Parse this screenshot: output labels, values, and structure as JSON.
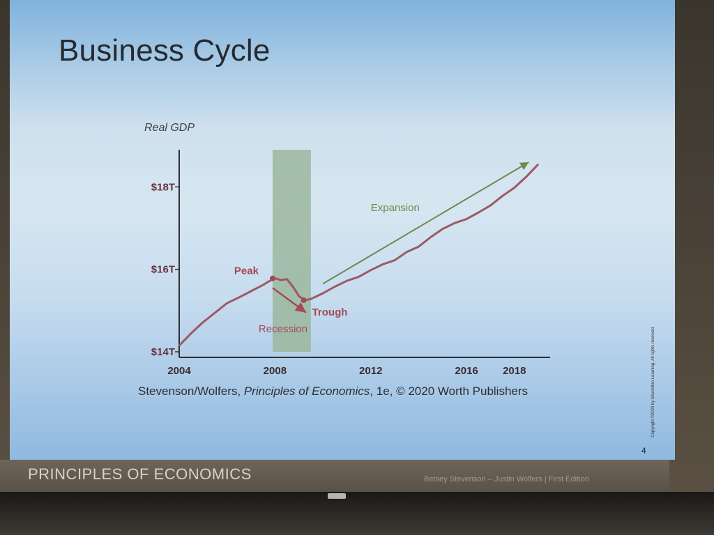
{
  "slide": {
    "title": "Business Cycle",
    "source_prefix": "Stevenson/Wolfers, ",
    "source_book": "Principles of Economics",
    "source_suffix": ", 1e, © 2020 Worth Publishers",
    "page_number": "4",
    "copyright": "Copyright ©2020 by Macmillan Learning. All rights reserved.",
    "footer_left": "PRINCIPLES OF ECONOMICS",
    "footer_right": "Betsey Stevenson – Justin Wolfers | First Edition"
  },
  "colors": {
    "gdp_line": "#9b5a63",
    "annotation": "#a34a58",
    "expansion": "#6e8a4a",
    "recession_band": "#9bb79e",
    "axis": "#2f2f33"
  },
  "chart_data": {
    "type": "line",
    "ylabel": "Real GDP",
    "ylim": [
      14,
      18.9
    ],
    "xlim": [
      2004,
      2019.2
    ],
    "y_ticks": [
      {
        "value": 14,
        "label": "$14T"
      },
      {
        "value": 16,
        "label": "$16T"
      },
      {
        "value": 18,
        "label": "$18T"
      }
    ],
    "x_ticks": [
      {
        "value": 2004,
        "label": "2004"
      },
      {
        "value": 2008,
        "label": "2008"
      },
      {
        "value": 2012,
        "label": "2012"
      },
      {
        "value": 2016,
        "label": "2016"
      },
      {
        "value": 2018,
        "label": "2018"
      }
    ],
    "recession_band": {
      "start": 2007.9,
      "end": 2009.5
    },
    "series": [
      {
        "x": [
          2004.0,
          2004.5,
          2005.0,
          2005.5,
          2006.0,
          2006.5,
          2007.0,
          2007.5,
          2007.75,
          2008.0,
          2008.25,
          2008.5,
          2008.75,
          2009.0,
          2009.25,
          2009.5,
          2009.75,
          2010.0,
          2010.5,
          2011.0,
          2011.5,
          2012.0,
          2012.5,
          2013.0,
          2013.5,
          2014.0,
          2014.5,
          2015.0,
          2015.5,
          2016.0,
          2016.5,
          2017.0,
          2017.5,
          2018.0,
          2018.5,
          2019.0
        ],
        "y": [
          14.15,
          14.45,
          14.72,
          14.95,
          15.18,
          15.32,
          15.47,
          15.62,
          15.71,
          15.78,
          15.74,
          15.76,
          15.58,
          15.35,
          15.25,
          15.28,
          15.35,
          15.42,
          15.58,
          15.72,
          15.82,
          15.98,
          16.12,
          16.22,
          16.42,
          16.55,
          16.78,
          16.98,
          17.12,
          17.22,
          17.38,
          17.55,
          17.78,
          17.98,
          18.25,
          18.55
        ]
      }
    ],
    "annotations": [
      {
        "label": "Peak",
        "x": 2007.9,
        "y": 15.78
      },
      {
        "label": "Trough",
        "x": 2009.2,
        "y": 15.25
      },
      {
        "label": "Recession",
        "from": [
          2007.9,
          15.55
        ],
        "to": [
          2009.3,
          14.95
        ]
      },
      {
        "label": "Expansion",
        "from": [
          2010.0,
          15.65
        ],
        "to": [
          2018.6,
          18.6
        ]
      }
    ]
  }
}
